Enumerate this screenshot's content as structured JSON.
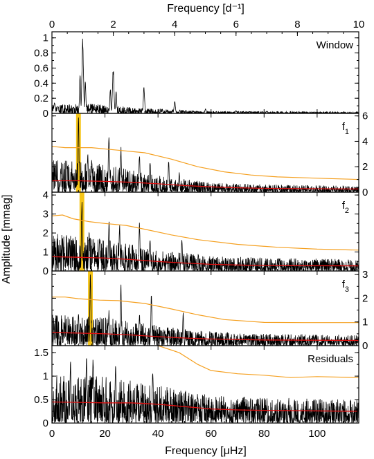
{
  "figure": {
    "top_axis_title": "Frequency [d⁻¹]",
    "bottom_axis_title": "Frequency [μHz]",
    "left_axis_title": "Amplitude [mmag]"
  },
  "colors": {
    "spectrum": "#000000",
    "sig_threshold": "#f5a020",
    "noise_level": "#e01010",
    "peak_highlight": "#f5c518"
  },
  "chart_data": [
    {
      "type": "line",
      "panel": "Window",
      "title": "Window",
      "xlabel": "Frequency [μHz]",
      "xlabel_top": "Frequency [d⁻¹]",
      "xlim": [
        0,
        115.7
      ],
      "xlim_top": [
        0,
        10
      ],
      "ylim": [
        0,
        1.08
      ],
      "yticks": [
        0,
        0.2,
        0.4,
        0.6,
        0.8,
        1
      ],
      "ytick_labels": [
        "0",
        "0.2",
        "0.4",
        "0.6",
        "0.8",
        "1"
      ],
      "yaxis_side": "left",
      "peaks": [
        {
          "x": 11.6,
          "y": 1.0,
          "width": 0.6
        },
        {
          "x": 10.6,
          "y": 0.55,
          "width": 0.4
        },
        {
          "x": 12.6,
          "y": 0.45,
          "width": 0.4
        },
        {
          "x": 23.1,
          "y": 0.61,
          "width": 0.6
        },
        {
          "x": 22.0,
          "y": 0.35,
          "width": 0.4
        },
        {
          "x": 24.2,
          "y": 0.3,
          "width": 0.4
        },
        {
          "x": 34.7,
          "y": 0.36,
          "width": 0.5
        },
        {
          "x": 46.3,
          "y": 0.17,
          "width": 0.5
        },
        {
          "x": 57.9,
          "y": 0.06,
          "width": 0.5
        },
        {
          "x": 69.4,
          "y": 0.04,
          "width": 0.5
        },
        {
          "x": 81.0,
          "y": 0.03,
          "width": 0.5
        },
        {
          "x": 1.0,
          "y": 0.15,
          "width": 0.6
        },
        {
          "x": 2.2,
          "y": 0.1,
          "width": 0.6
        }
      ],
      "noise_envelope": [
        [
          0,
          0.12
        ],
        [
          15,
          0.13
        ],
        [
          30,
          0.08
        ],
        [
          45,
          0.05
        ],
        [
          60,
          0.03
        ],
        [
          115.7,
          0.02
        ]
      ]
    },
    {
      "type": "line",
      "panel": "f1",
      "title": "f",
      "title_subscript": "1",
      "xlim": [
        0,
        115.7
      ],
      "ylim": [
        0,
        6.2
      ],
      "yticks": [
        0,
        2,
        4,
        6
      ],
      "ytick_labels": [
        "0",
        "2",
        "4",
        "6"
      ],
      "yaxis_side": "right",
      "highlight": {
        "x": 10.0,
        "halfwidth": 0.9
      },
      "peaks": [
        {
          "x": 10.0,
          "y": 6.0,
          "width": 0.4
        },
        {
          "x": 13.5,
          "y": 3.2,
          "width": 0.4
        },
        {
          "x": 15.0,
          "y": 2.8,
          "width": 0.4
        },
        {
          "x": 21.5,
          "y": 4.7,
          "width": 0.5
        },
        {
          "x": 26.0,
          "y": 3.6,
          "width": 0.4
        },
        {
          "x": 33.0,
          "y": 3.0,
          "width": 0.4
        },
        {
          "x": 37.0,
          "y": 2.6,
          "width": 0.4
        },
        {
          "x": 44.0,
          "y": 2.5,
          "width": 0.4
        },
        {
          "x": 48.0,
          "y": 1.6,
          "width": 0.4
        }
      ],
      "noise_envelope": [
        [
          0,
          2.6
        ],
        [
          20,
          2.2
        ],
        [
          40,
          1.3
        ],
        [
          60,
          0.75
        ],
        [
          80,
          0.6
        ],
        [
          115.7,
          0.5
        ]
      ],
      "sig_threshold": [
        [
          0,
          3.6
        ],
        [
          5,
          3.5
        ],
        [
          15,
          3.5
        ],
        [
          25,
          3.3
        ],
        [
          35,
          3.1
        ],
        [
          45,
          2.6
        ],
        [
          55,
          2.0
        ],
        [
          65,
          1.6
        ],
        [
          75,
          1.35
        ],
        [
          85,
          1.2
        ],
        [
          100,
          1.1
        ],
        [
          115.7,
          1.0
        ]
      ],
      "noise_level": [
        [
          0,
          0.9
        ],
        [
          10,
          0.9
        ],
        [
          20,
          0.85
        ],
        [
          30,
          0.78
        ],
        [
          40,
          0.66
        ],
        [
          50,
          0.52
        ],
        [
          60,
          0.42
        ],
        [
          70,
          0.35
        ],
        [
          80,
          0.3
        ],
        [
          100,
          0.27
        ],
        [
          115.7,
          0.25
        ]
      ]
    },
    {
      "type": "line",
      "panel": "f2",
      "title": "f",
      "title_subscript": "2",
      "xlim": [
        0,
        115.7
      ],
      "ylim": [
        0,
        4.15
      ],
      "yticks": [
        0,
        1,
        2,
        3,
        4
      ],
      "ytick_labels": [
        "0",
        "1",
        "2",
        "3",
        "4"
      ],
      "yaxis_side": "left",
      "highlight": {
        "x": 11.3,
        "halfwidth": 0.9
      },
      "peaks": [
        {
          "x": 11.3,
          "y": 3.9,
          "width": 0.4
        },
        {
          "x": 14.0,
          "y": 2.1,
          "width": 0.4
        },
        {
          "x": 18.0,
          "y": 1.9,
          "width": 0.4
        },
        {
          "x": 21.5,
          "y": 2.8,
          "width": 0.4
        },
        {
          "x": 25.5,
          "y": 2.6,
          "width": 0.4
        },
        {
          "x": 33.0,
          "y": 2.6,
          "width": 0.4
        },
        {
          "x": 37.0,
          "y": 1.8,
          "width": 0.4
        },
        {
          "x": 49.0,
          "y": 1.7,
          "width": 0.4
        }
      ],
      "noise_envelope": [
        [
          0,
          2.0
        ],
        [
          20,
          1.7
        ],
        [
          40,
          1.1
        ],
        [
          60,
          0.8
        ],
        [
          80,
          0.7
        ],
        [
          115.7,
          0.6
        ]
      ],
      "sig_threshold": [
        [
          0,
          2.9
        ],
        [
          4,
          2.95
        ],
        [
          8,
          2.75
        ],
        [
          14,
          2.6
        ],
        [
          20,
          2.5
        ],
        [
          28,
          2.4
        ],
        [
          35,
          2.2
        ],
        [
          45,
          1.9
        ],
        [
          55,
          1.65
        ],
        [
          70,
          1.4
        ],
        [
          85,
          1.25
        ],
        [
          100,
          1.15
        ],
        [
          115.7,
          1.1
        ]
      ],
      "noise_level": [
        [
          0,
          0.75
        ],
        [
          10,
          0.72
        ],
        [
          20,
          0.68
        ],
        [
          30,
          0.6
        ],
        [
          40,
          0.5
        ],
        [
          50,
          0.42
        ],
        [
          60,
          0.35
        ],
        [
          75,
          0.3
        ],
        [
          90,
          0.28
        ],
        [
          115.7,
          0.27
        ]
      ]
    },
    {
      "type": "line",
      "panel": "f3",
      "title": "f",
      "title_subscript": "3",
      "xlim": [
        0,
        115.7
      ],
      "ylim": [
        0,
        3.15
      ],
      "yticks": [
        0,
        1,
        2,
        3
      ],
      "ytick_labels": [
        "0",
        "1",
        "2",
        "3"
      ],
      "yaxis_side": "right",
      "highlight": {
        "x": 14.5,
        "halfwidth": 0.9
      },
      "peaks": [
        {
          "x": 14.5,
          "y": 3.1,
          "width": 0.4
        },
        {
          "x": 10.0,
          "y": 1.5,
          "width": 0.4
        },
        {
          "x": 21.5,
          "y": 1.5,
          "width": 0.4
        },
        {
          "x": 26.0,
          "y": 2.75,
          "width": 0.4
        },
        {
          "x": 33.0,
          "y": 1.4,
          "width": 0.4
        },
        {
          "x": 37.5,
          "y": 2.3,
          "width": 0.4
        },
        {
          "x": 49.5,
          "y": 1.4,
          "width": 0.4
        }
      ],
      "noise_envelope": [
        [
          0,
          1.3
        ],
        [
          20,
          1.2
        ],
        [
          40,
          0.85
        ],
        [
          60,
          0.6
        ],
        [
          80,
          0.5
        ],
        [
          115.7,
          0.45
        ]
      ],
      "sig_threshold": [
        [
          0,
          2.05
        ],
        [
          5,
          2.05
        ],
        [
          10,
          1.98
        ],
        [
          18,
          1.92
        ],
        [
          25,
          1.9
        ],
        [
          35,
          1.78
        ],
        [
          45,
          1.55
        ],
        [
          55,
          1.3
        ],
        [
          65,
          1.1
        ],
        [
          80,
          0.98
        ],
        [
          95,
          0.97
        ],
        [
          115.7,
          0.97
        ]
      ],
      "noise_level": [
        [
          0,
          0.55
        ],
        [
          10,
          0.53
        ],
        [
          20,
          0.5
        ],
        [
          30,
          0.45
        ],
        [
          40,
          0.38
        ],
        [
          50,
          0.32
        ],
        [
          60,
          0.28
        ],
        [
          80,
          0.24
        ],
        [
          115.7,
          0.22
        ]
      ]
    },
    {
      "type": "line",
      "panel": "Residuals",
      "title": "Residuals",
      "xlabel": "Frequency [μHz]",
      "xlim": [
        0,
        115.7
      ],
      "ylim": [
        0,
        1.65
      ],
      "yticks": [
        0,
        0.5,
        1,
        1.5
      ],
      "ytick_labels": [
        "0",
        "0.5",
        "1",
        "1.5"
      ],
      "xticks": [
        0,
        20,
        40,
        60,
        80,
        100
      ],
      "xtick_labels": [
        "0",
        "20",
        "40",
        "60",
        "80",
        "100"
      ],
      "yaxis_side": "left",
      "peaks": [
        {
          "x": 13.0,
          "y": 1.5,
          "width": 0.4
        },
        {
          "x": 15.5,
          "y": 1.45,
          "width": 0.4
        },
        {
          "x": 24.0,
          "y": 1.3,
          "width": 0.4
        },
        {
          "x": 7.0,
          "y": 1.35,
          "width": 0.4
        },
        {
          "x": 38.0,
          "y": 1.1,
          "width": 0.4
        }
      ],
      "noise_envelope": [
        [
          0,
          1.05
        ],
        [
          20,
          1.0
        ],
        [
          40,
          0.8
        ],
        [
          60,
          0.6
        ],
        [
          80,
          0.55
        ],
        [
          115.7,
          0.5
        ]
      ],
      "sig_threshold": [
        [
          40,
          1.65
        ],
        [
          48,
          1.5
        ],
        [
          55,
          1.25
        ],
        [
          60,
          1.12
        ],
        [
          70,
          1.05
        ],
        [
          80,
          1.02
        ],
        [
          90,
          0.97
        ],
        [
          100,
          0.99
        ],
        [
          115.7,
          0.97
        ]
      ],
      "noise_level": [
        [
          0,
          0.45
        ],
        [
          10,
          0.44
        ],
        [
          20,
          0.43
        ],
        [
          30,
          0.43
        ],
        [
          40,
          0.4
        ],
        [
          50,
          0.35
        ],
        [
          60,
          0.3
        ],
        [
          70,
          0.28
        ],
        [
          80,
          0.27
        ],
        [
          115.7,
          0.25
        ]
      ]
    }
  ],
  "top_axis": {
    "xticks": [
      0,
      2,
      4,
      6,
      8,
      10
    ],
    "xtick_labels": [
      "0",
      "2",
      "4",
      "6",
      "8",
      "10"
    ]
  }
}
